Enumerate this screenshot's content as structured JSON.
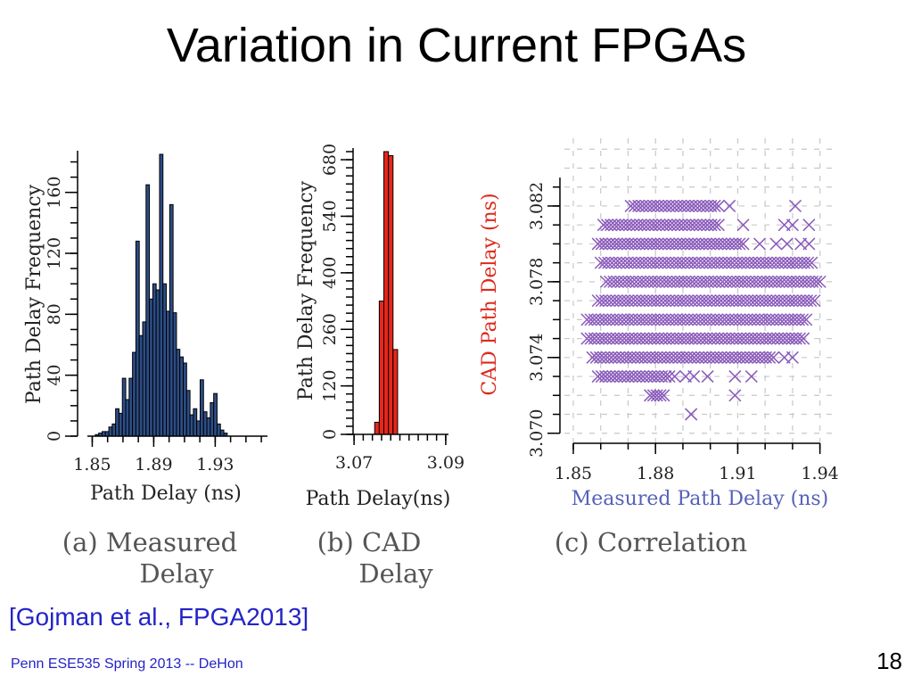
{
  "slide": {
    "title": "Variation in Current FPGAs",
    "citation": "[Gojman et al., FPGA2013]",
    "footer": "Penn ESE535 Spring 2013 -- DeHon",
    "page_number": "18"
  },
  "colors": {
    "bar_blue": "#2c4d86",
    "bar_red": "#e8261a",
    "scatter_purple": "#8a5bbb",
    "red_label": "#dd2a1c",
    "blue_label": "#5561b8",
    "link_blue": "#2323c8"
  },
  "captions": {
    "a_line1": "(a) Measured",
    "a_line2": "Delay",
    "b_line1": "(b) CAD",
    "b_line2": "Delay",
    "c_line1": "(c) Correlation"
  },
  "chart_data": [
    {
      "type": "bar",
      "title": "",
      "xlabel": "Path Delay (ns)",
      "ylabel": "Path Delay Frequency",
      "xlim": [
        1.848,
        1.964
      ],
      "ylim": [
        0,
        185
      ],
      "xticks": [
        1.85,
        1.89,
        1.93
      ],
      "xtick_labels": [
        "1.85",
        "1.89",
        "1.93"
      ],
      "yticks": [
        0,
        40,
        80,
        120,
        160
      ],
      "ytick_labels": [
        "0",
        "40",
        "80",
        "120",
        "160"
      ],
      "bin_width": 0.0022,
      "bin_starts": [
        1.852,
        1.8542,
        1.8564,
        1.8586,
        1.8608,
        1.863,
        1.8652,
        1.8674,
        1.8696,
        1.8718,
        1.874,
        1.8762,
        1.8784,
        1.8806,
        1.8828,
        1.885,
        1.8872,
        1.8894,
        1.8916,
        1.8938,
        1.896,
        1.8982,
        1.9004,
        1.9026,
        1.9048,
        1.907,
        1.9092,
        1.9114,
        1.9136,
        1.9158,
        1.918,
        1.9202,
        1.9224,
        1.9246,
        1.9268,
        1.929,
        1.9312,
        1.9334,
        1.9356
      ],
      "values": [
        1,
        2,
        3,
        3,
        6,
        8,
        18,
        15,
        38,
        24,
        38,
        55,
        128,
        66,
        75,
        165,
        90,
        100,
        96,
        185,
        100,
        82,
        152,
        81,
        57,
        52,
        48,
        30,
        14,
        18,
        10,
        37,
        16,
        12,
        22,
        28,
        8,
        4,
        2
      ]
    },
    {
      "type": "bar",
      "title": "",
      "xlabel": "Path Delay(ns)",
      "ylabel": "Path Delay Frequency",
      "xlim": [
        3.0692,
        3.0906
      ],
      "ylim": [
        0,
        700
      ],
      "xticks": [
        3.07,
        3.09
      ],
      "xtick_labels": [
        "3.07",
        "3.09"
      ],
      "yticks": [
        0,
        120,
        260,
        400,
        540,
        680
      ],
      "ytick_labels": [
        "0",
        "120",
        "260",
        "400",
        "540",
        "680"
      ],
      "bin_width": 0.001,
      "bin_starts": [
        3.0745,
        3.0755,
        3.0765,
        3.0775,
        3.0785
      ],
      "values": [
        30,
        330,
        700,
        690,
        210
      ]
    },
    {
      "type": "scatter",
      "title": "",
      "xlabel": "Measured Path Delay (ns)",
      "ylabel": "CAD Path Delay (ns)",
      "xlim": [
        1.85,
        1.945
      ],
      "ylim": [
        3.0698,
        3.0852
      ],
      "xticks": [
        1.85,
        1.88,
        1.91,
        1.94
      ],
      "xtick_labels": [
        "1.85",
        "1.88",
        "1.91",
        "1.94"
      ],
      "yticks": [
        3.07,
        3.074,
        3.078,
        3.082
      ],
      "ytick_labels": [
        "3.070",
        "3.074",
        "3.078",
        "3.082"
      ],
      "grid": true,
      "marker": "x",
      "rows": [
        {
          "y": 3.082,
          "xmin": 1.871,
          "xmax": 1.903,
          "extra_x": [
            1.907,
            1.931
          ]
        },
        {
          "y": 3.081,
          "xmin": 1.861,
          "xmax": 1.903,
          "extra_x": [
            1.912,
            1.927,
            1.93,
            1.936
          ]
        },
        {
          "y": 3.08,
          "xmin": 1.859,
          "xmax": 1.912,
          "extra_x": [
            1.918,
            1.924,
            1.928,
            1.933,
            1.936
          ]
        },
        {
          "y": 3.079,
          "xmin": 1.86,
          "xmax": 1.937,
          "extra_x": []
        },
        {
          "y": 3.078,
          "xmin": 1.862,
          "xmax": 1.94,
          "extra_x": []
        },
        {
          "y": 3.077,
          "xmin": 1.859,
          "xmax": 1.938,
          "extra_x": []
        },
        {
          "y": 3.076,
          "xmin": 1.855,
          "xmax": 1.935,
          "extra_x": []
        },
        {
          "y": 3.075,
          "xmin": 1.855,
          "xmax": 1.934,
          "extra_x": []
        },
        {
          "y": 3.074,
          "xmin": 1.857,
          "xmax": 1.923,
          "extra_x": [
            1.927,
            1.93
          ]
        },
        {
          "y": 3.073,
          "xmin": 1.859,
          "xmax": 1.885,
          "extra_x": [
            1.887,
            1.891,
            1.894,
            1.899,
            1.909,
            1.915
          ]
        },
        {
          "y": 3.072,
          "xmin": 1.878,
          "xmax": 1.883,
          "extra_x": [
            1.909
          ]
        },
        {
          "y": 3.071,
          "xmin": 1.893,
          "xmax": 1.893,
          "extra_x": []
        }
      ]
    }
  ]
}
